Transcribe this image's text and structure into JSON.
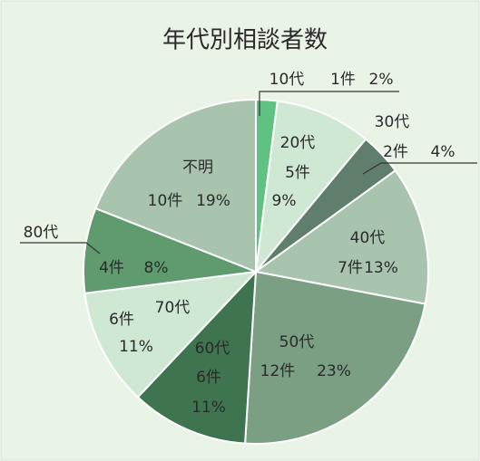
{
  "chart_data": {
    "type": "pie",
    "title": "年代別相談者数",
    "categories": [
      "10代",
      "20代",
      "30代",
      "40代",
      "50代",
      "60代",
      "70代",
      "80代",
      "不明"
    ],
    "count_labels": [
      "1件",
      "5件",
      "2件",
      "7件",
      "12件",
      "6件",
      "6件",
      "4件",
      "10件"
    ],
    "values": [
      2,
      9,
      4,
      13,
      23,
      11,
      11,
      8,
      19
    ],
    "value_labels": [
      "2%",
      "9%",
      "4%",
      "13%",
      "23%",
      "11%",
      "11%",
      "8%",
      "19%"
    ],
    "colors": [
      "#5fc283",
      "#cfe8d4",
      "#5f7e6b",
      "#a8c3ae",
      "#7b9f83",
      "#3f7450",
      "#cfe8d4",
      "#609b6f",
      "#a8c3ae"
    ]
  }
}
